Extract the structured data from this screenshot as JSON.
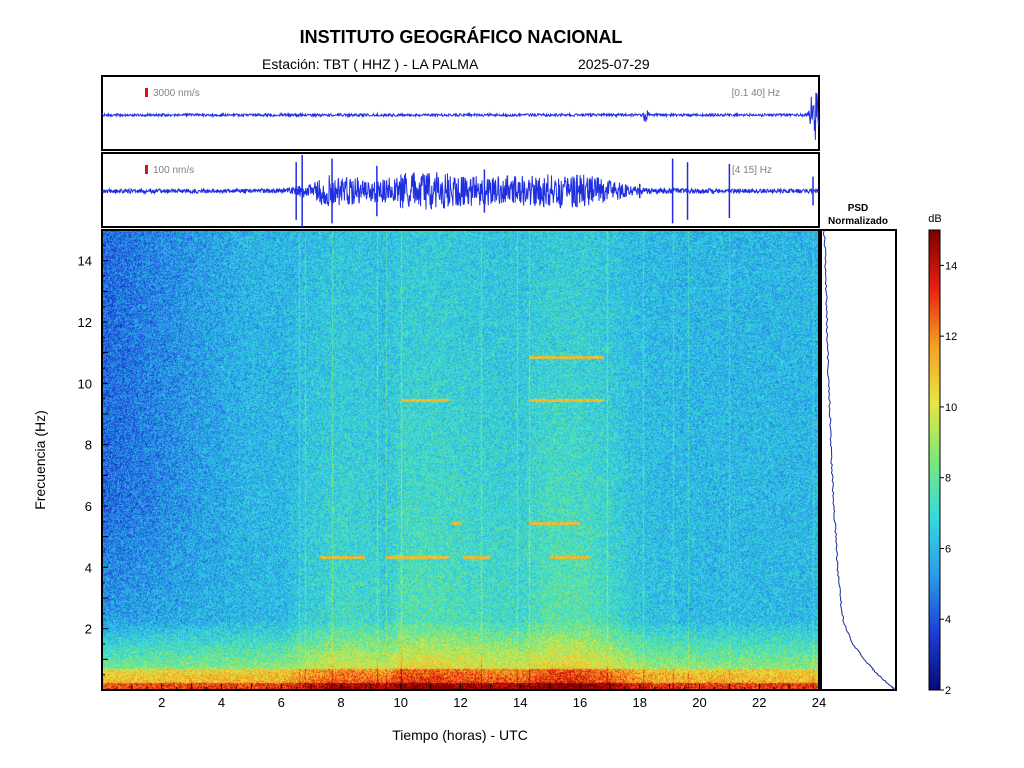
{
  "header": {
    "title": "INSTITUTO GEOGRÁFICO NACIONAL",
    "station": "Estación:  TBT ( HHZ ) - LA PALMA",
    "date": "2025-07-29"
  },
  "colors": {
    "trace": "#1f2fe0",
    "scale_marker": "#e01010",
    "psd_line": "#1a2a9a",
    "colormap": [
      "#08087a",
      "#1b3fd6",
      "#2a9de8",
      "#33d9e0",
      "#7be87a",
      "#e8e640",
      "#f5a020",
      "#e81e10",
      "#7a0000"
    ]
  },
  "chart_data": [
    {
      "type": "line",
      "name": "seismogram-broadband",
      "scale_label": "3000 nm/s",
      "filter_label": "[0.1 40] Hz",
      "x_range": [
        0,
        24
      ],
      "baseline_amplitude": 0.04,
      "events": [
        {
          "t": 18.2,
          "amplitude": 0.35
        },
        {
          "t": 23.9,
          "amplitude": 1.0
        },
        {
          "t": 23.75,
          "amplitude": 0.6
        }
      ]
    },
    {
      "type": "line",
      "name": "seismogram-filtered",
      "scale_label": "100 nm/s",
      "filter_label": "[4 15] Hz",
      "x_range": [
        0,
        24
      ],
      "baseline_amplitude": 0.06,
      "envelope": [
        [
          0,
          0.05
        ],
        [
          6,
          0.06
        ],
        [
          6.8,
          0.2
        ],
        [
          7.5,
          0.45
        ],
        [
          8.5,
          0.4
        ],
        [
          9.3,
          0.3
        ],
        [
          10,
          0.5
        ],
        [
          11,
          0.55
        ],
        [
          12,
          0.45
        ],
        [
          13,
          0.4
        ],
        [
          14.5,
          0.45
        ],
        [
          16,
          0.5
        ],
        [
          17,
          0.3
        ],
        [
          18,
          0.1
        ],
        [
          19,
          0.07
        ],
        [
          24,
          0.05
        ]
      ],
      "spikes": [
        {
          "t": 6.5,
          "amplitude": 0.8
        },
        {
          "t": 6.7,
          "amplitude": 1.0
        },
        {
          "t": 7.7,
          "amplitude": 0.9
        },
        {
          "t": 9.2,
          "amplitude": 0.7
        },
        {
          "t": 12.8,
          "amplitude": 0.6
        },
        {
          "t": 15.9,
          "amplitude": 0.45
        },
        {
          "t": 18.0,
          "amplitude": 0.2
        },
        {
          "t": 19.1,
          "amplitude": 0.9
        },
        {
          "t": 19.6,
          "amplitude": 0.8
        },
        {
          "t": 21.0,
          "amplitude": 0.75
        },
        {
          "t": 23.8,
          "amplitude": 0.4
        }
      ]
    },
    {
      "type": "heatmap",
      "name": "spectrogram",
      "xlabel": "Tiempo (horas) - UTC",
      "ylabel": "Frecuencia  (Hz)",
      "xlim": [
        0,
        24
      ],
      "ylim": [
        0,
        15
      ],
      "xticks": [
        2,
        4,
        6,
        8,
        10,
        12,
        14,
        16,
        18,
        20,
        22,
        24
      ],
      "yticks": [
        2,
        4,
        6,
        8,
        10,
        12,
        14
      ],
      "zlim": [
        2,
        15
      ],
      "activity_envelope": [
        [
          0,
          0.0
        ],
        [
          6,
          0.05
        ],
        [
          7,
          0.35
        ],
        [
          8,
          0.55
        ],
        [
          9,
          0.5
        ],
        [
          9.5,
          0.35
        ],
        [
          10,
          0.7
        ],
        [
          11,
          0.75
        ],
        [
          12,
          0.65
        ],
        [
          13,
          0.55
        ],
        [
          14,
          0.5
        ],
        [
          15,
          0.8
        ],
        [
          16,
          0.8
        ],
        [
          17,
          0.55
        ],
        [
          18,
          0.2
        ],
        [
          19,
          0.12
        ],
        [
          20,
          0.08
        ],
        [
          24,
          0.05
        ]
      ],
      "tonal_lines": [
        {
          "freq": 4.35,
          "t0": 7.3,
          "t1": 8.8
        },
        {
          "freq": 4.35,
          "t0": 9.5,
          "t1": 11.6
        },
        {
          "freq": 4.35,
          "t0": 12.1,
          "t1": 13.0
        },
        {
          "freq": 4.35,
          "t0": 15.0,
          "t1": 16.3
        },
        {
          "freq": 5.45,
          "t0": 14.3,
          "t1": 16.0
        },
        {
          "freq": 5.45,
          "t0": 11.7,
          "t1": 12.0
        },
        {
          "freq": 9.45,
          "t0": 10.0,
          "t1": 11.6
        },
        {
          "freq": 9.45,
          "t0": 14.3,
          "t1": 16.8
        },
        {
          "freq": 10.85,
          "t0": 14.3,
          "t1": 16.8
        }
      ],
      "vertical_lines": [
        6.6,
        6.8,
        7.7,
        9.2,
        9.5,
        10.0,
        12.7,
        13.9,
        14.3,
        16.9,
        18.1,
        19.1,
        19.6,
        21.0,
        23.8
      ]
    },
    {
      "type": "line",
      "name": "psd",
      "title": "PSD",
      "subtitle": "Normalizado",
      "ylim": [
        0,
        15
      ],
      "points": [
        [
          15,
          0.04
        ],
        [
          14,
          0.06
        ],
        [
          13,
          0.07
        ],
        [
          12,
          0.08
        ],
        [
          11,
          0.09
        ],
        [
          10,
          0.1
        ],
        [
          9,
          0.12
        ],
        [
          8,
          0.13
        ],
        [
          7,
          0.15
        ],
        [
          6,
          0.17
        ],
        [
          5,
          0.2
        ],
        [
          4,
          0.22
        ],
        [
          3,
          0.26
        ],
        [
          2.2,
          0.3
        ],
        [
          1.5,
          0.42
        ],
        [
          1.0,
          0.58
        ],
        [
          0.6,
          0.72
        ],
        [
          0.3,
          0.85
        ],
        [
          0.1,
          0.95
        ],
        [
          0,
          0.98
        ]
      ]
    },
    {
      "type": "heatmap",
      "name": "colorbar",
      "title": "dB",
      "zlim": [
        2,
        15
      ],
      "ticks": [
        2,
        4,
        6,
        8,
        10,
        12,
        14
      ]
    }
  ]
}
